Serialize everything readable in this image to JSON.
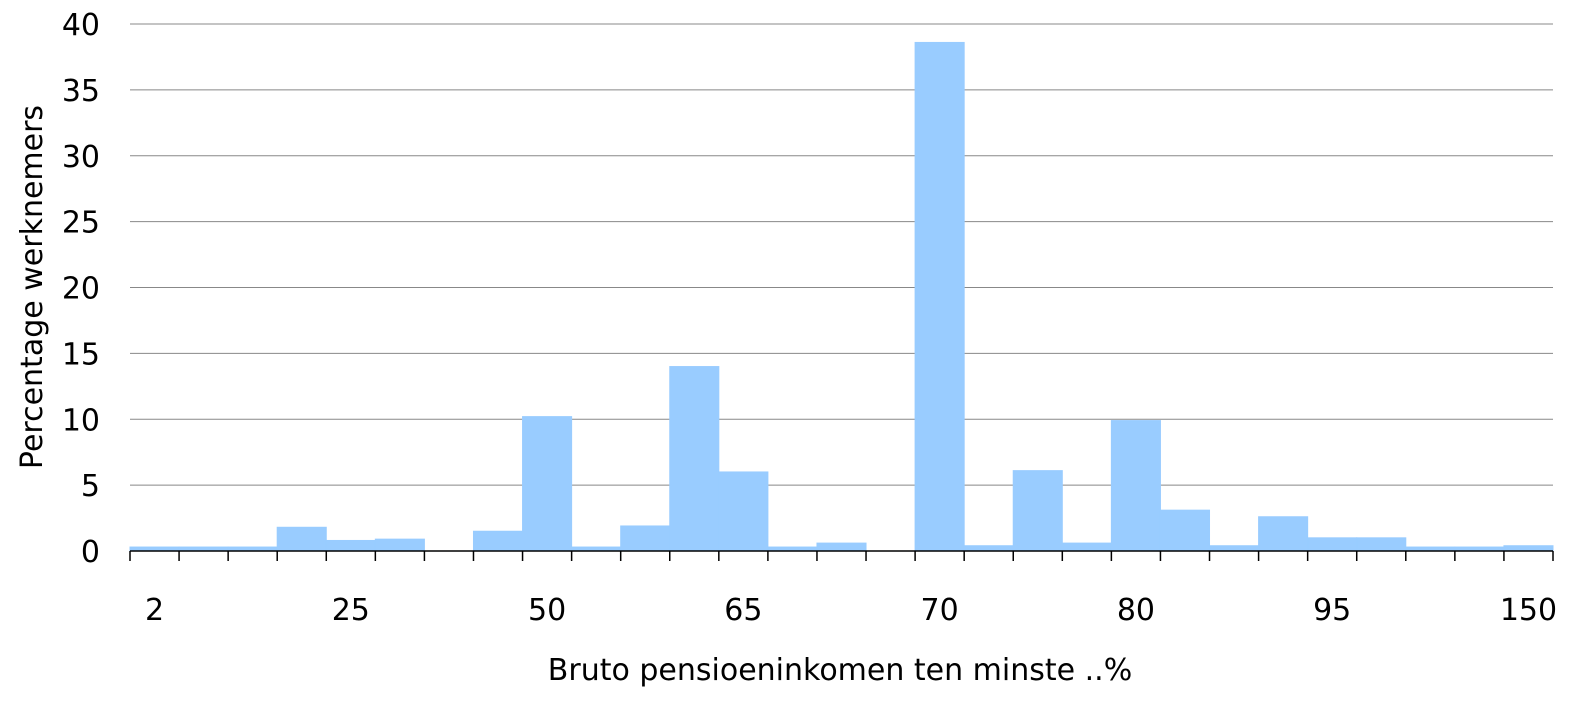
{
  "chart_data": {
    "type": "bar",
    "xlabel": "Bruto pensioeninkomen ten minste ..%",
    "ylabel": "Percentage werknemers",
    "ylim": [
      0,
      40
    ],
    "yticks": [
      0,
      5,
      10,
      15,
      20,
      25,
      30,
      35,
      40
    ],
    "grid": true,
    "bar_color": "#99ccff",
    "x_tick_labels": [
      {
        "label": "2",
        "bin": 0
      },
      {
        "label": "25",
        "bin": 4
      },
      {
        "label": "50",
        "bin": 8
      },
      {
        "label": "65",
        "bin": 12
      },
      {
        "label": "70",
        "bin": 16
      },
      {
        "label": "80",
        "bin": 20
      },
      {
        "label": "95",
        "bin": 24
      },
      {
        "label": "150",
        "bin": 28
      }
    ],
    "values": [
      0.3,
      0.3,
      0.3,
      1.8,
      0.8,
      0.9,
      0.0,
      1.5,
      10.2,
      0.3,
      1.9,
      14.0,
      6.0,
      0.3,
      0.6,
      0.0,
      38.6,
      0.4,
      6.1,
      0.6,
      9.9,
      3.1,
      0.4,
      2.6,
      1.0,
      1.0,
      0.3,
      0.3,
      0.4
    ]
  }
}
